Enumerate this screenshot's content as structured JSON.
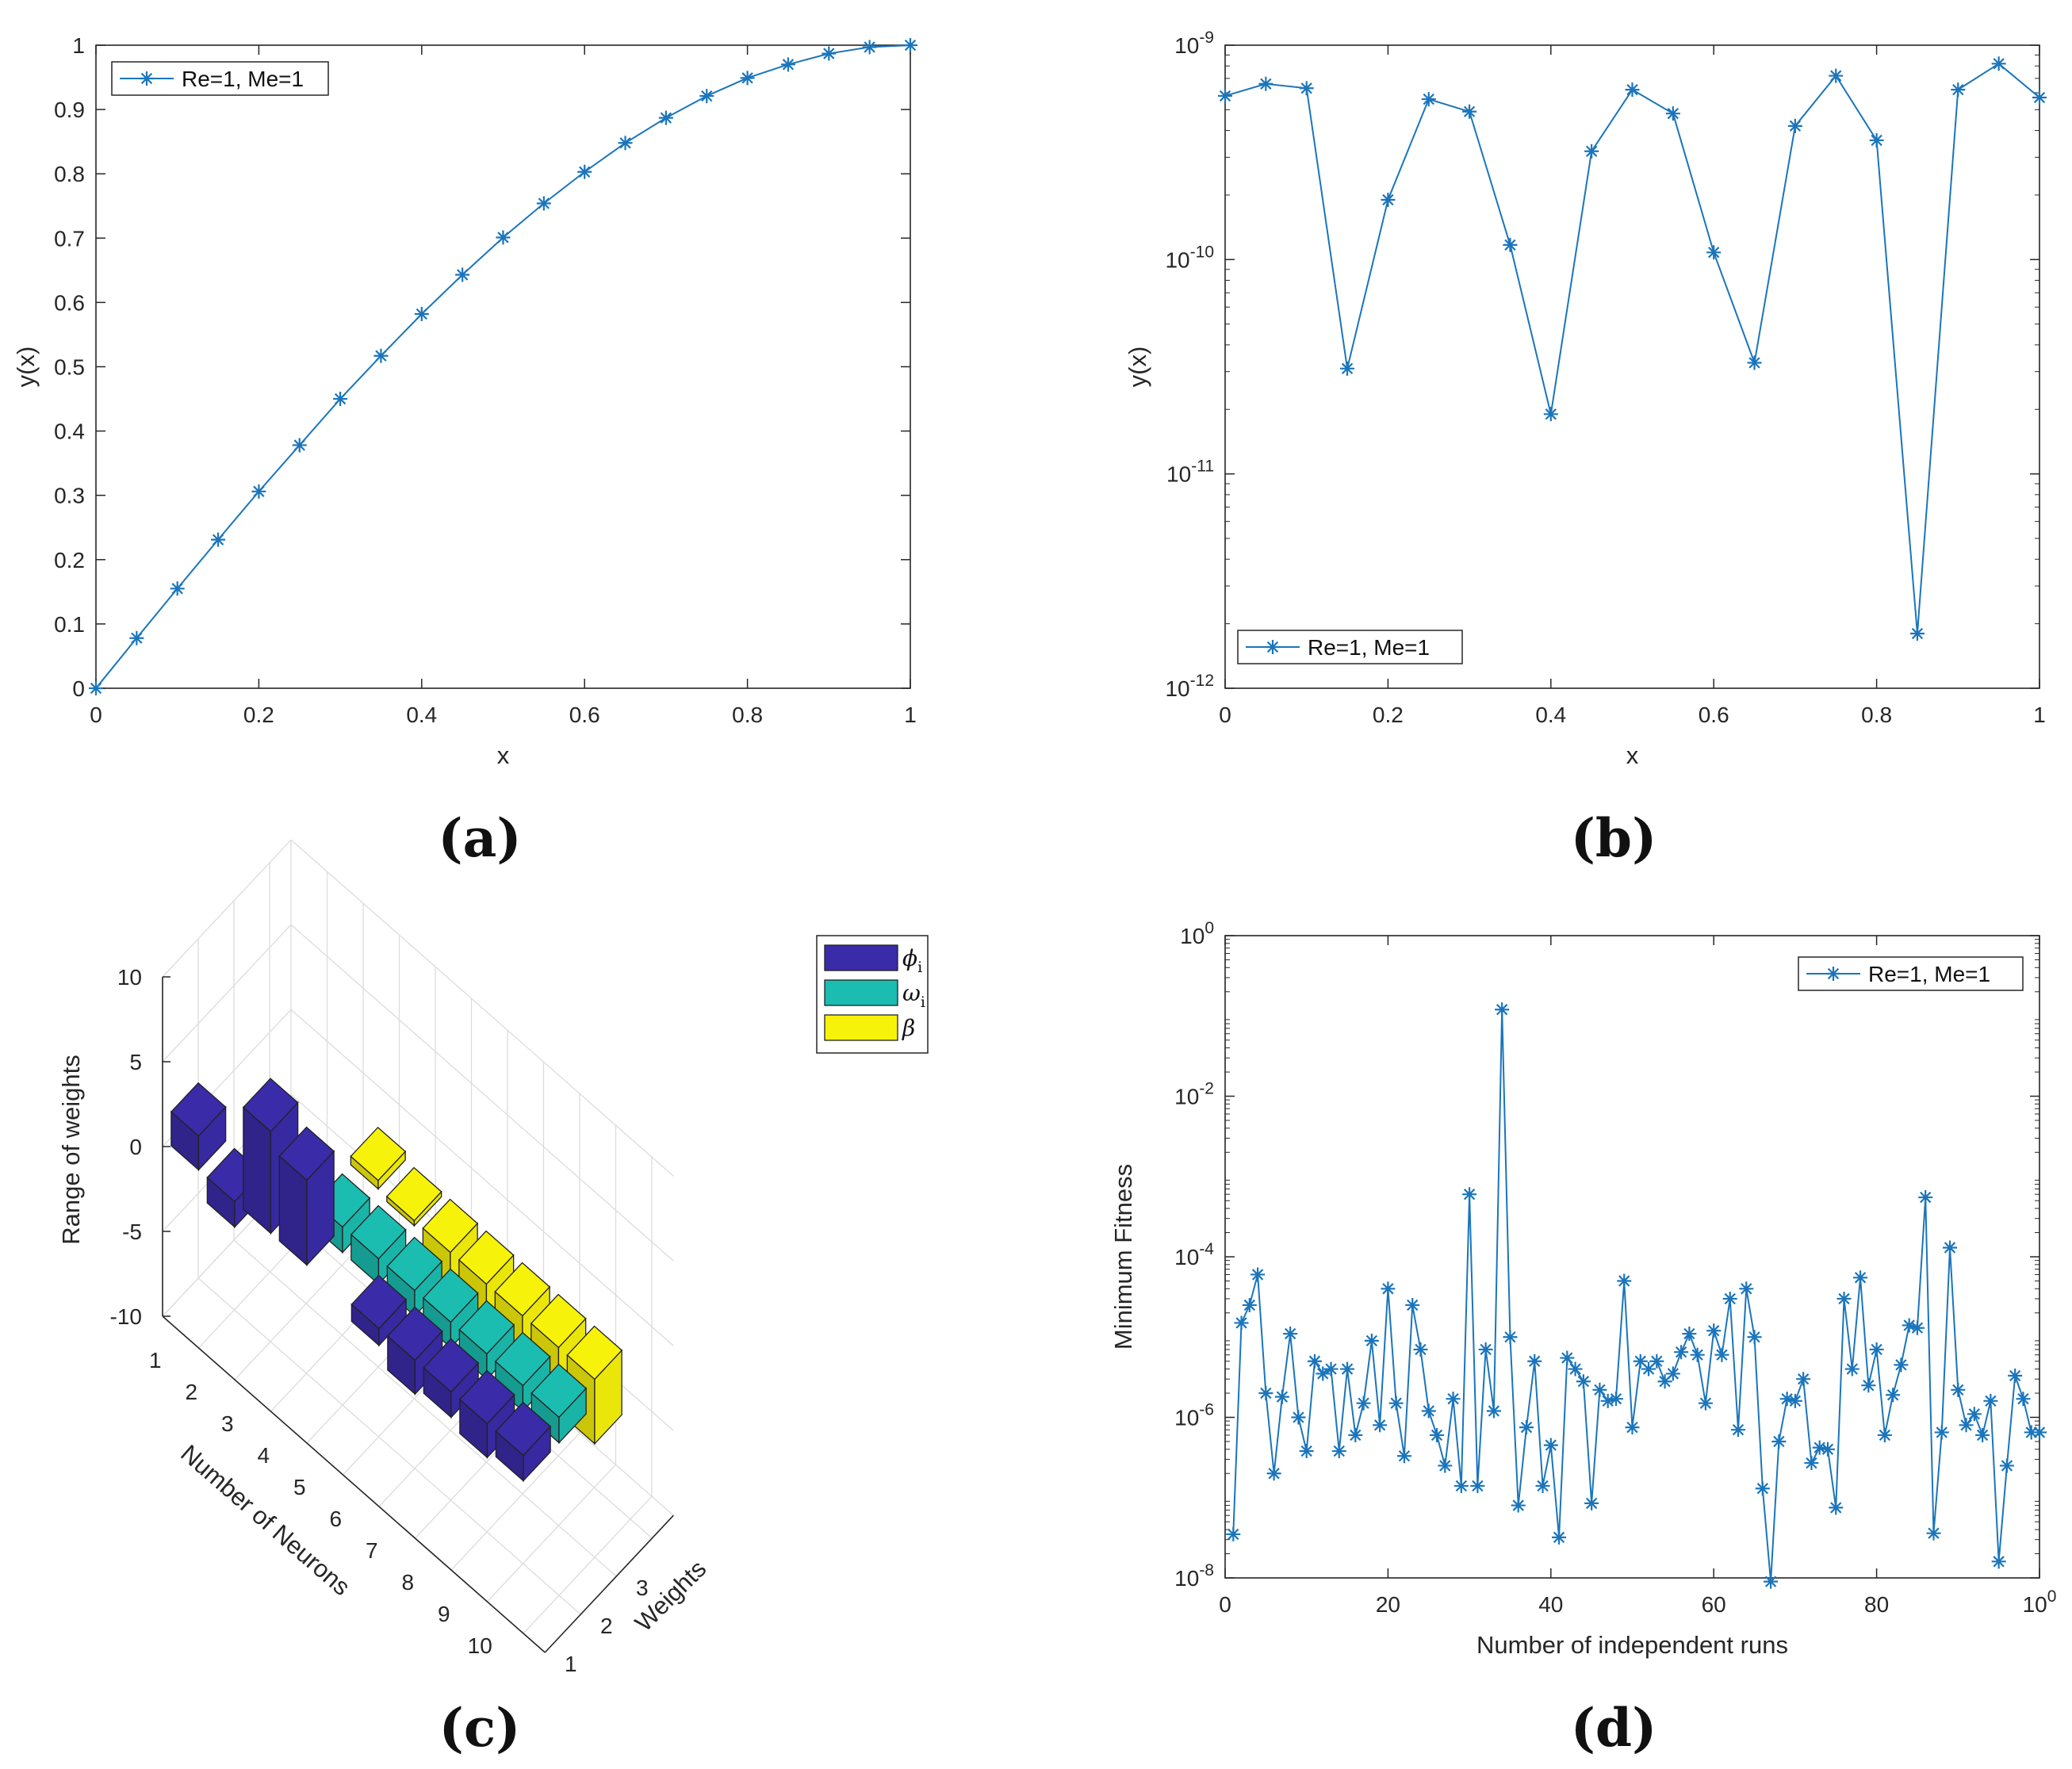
{
  "colors": {
    "series": "#1a75bc",
    "phi": "#3a2ba8",
    "omega": "#1bbdb0",
    "beta": "#f7f209",
    "axis": "#262626"
  },
  "panels": {
    "a": "(a)",
    "b": "(b)",
    "c": "(c)",
    "d": "(d)"
  },
  "chart_data": [
    {
      "type": "line",
      "xlabel": "x",
      "ylabel": "y(x)",
      "xlim": [
        0,
        1
      ],
      "ylim": [
        0,
        1
      ],
      "xticks": [
        "0",
        "0.2",
        "0.4",
        "0.6",
        "0.8",
        "1"
      ],
      "yticks": [
        "0",
        "0.1",
        "0.2",
        "0.3",
        "0.4",
        "0.5",
        "0.6",
        "0.7",
        "0.8",
        "0.9",
        "1"
      ],
      "legend": "top-left",
      "series": [
        {
          "name": "Re=1, Me=1",
          "x": [
            0,
            0.05,
            0.1,
            0.15,
            0.2,
            0.25,
            0.3,
            0.35,
            0.4,
            0.45,
            0.5,
            0.55,
            0.6,
            0.65,
            0.7,
            0.75,
            0.8,
            0.85,
            0.9,
            0.95,
            1
          ],
          "y": [
            0,
            0.078,
            0.155,
            0.231,
            0.306,
            0.378,
            0.45,
            0.517,
            0.582,
            0.643,
            0.701,
            0.754,
            0.803,
            0.848,
            0.887,
            0.921,
            0.949,
            0.97,
            0.987,
            0.997,
            1
          ]
        }
      ]
    },
    {
      "type": "line",
      "xlabel": "x",
      "ylabel": "y(x)",
      "xlim": [
        0,
        1
      ],
      "ylim": [
        1e-12,
        1e-09
      ],
      "yscale": "log",
      "xticks": [
        "0",
        "0.2",
        "0.4",
        "0.6",
        "0.8",
        "1"
      ],
      "yticks": [
        "10-12",
        "10-11",
        "10-10",
        "10-9"
      ],
      "legend": "bottom-left",
      "series": [
        {
          "name": "Re=1, Me=1",
          "x": [
            0,
            0.05,
            0.1,
            0.15,
            0.2,
            0.25,
            0.3,
            0.35,
            0.4,
            0.45,
            0.5,
            0.55,
            0.6,
            0.65,
            0.7,
            0.75,
            0.8,
            0.85,
            0.9,
            0.95,
            1
          ],
          "y": [
            5.8e-10,
            6.6e-10,
            6.3e-10,
            3.1e-11,
            1.9e-10,
            5.6e-10,
            4.9e-10,
            1.17e-10,
            1.9e-11,
            3.2e-10,
            6.2e-10,
            4.8e-10,
            1.08e-10,
            3.3e-11,
            4.2e-10,
            7.2e-10,
            3.6e-10,
            1.8e-12,
            6.2e-10,
            8.2e-10,
            5.7e-10
          ]
        }
      ]
    },
    {
      "type": "bar3d",
      "xlabel": "Number of Neurons",
      "ylabel": "Weights",
      "zlabel": "Range of weights",
      "xticks": [
        "1",
        "2",
        "3",
        "4",
        "5",
        "6",
        "7",
        "8",
        "9",
        "10"
      ],
      "yticks": [
        "1",
        "2",
        "3"
      ],
      "zticks": [
        "-10",
        "-5",
        "0",
        "5",
        "10"
      ],
      "zlim": [
        -10,
        10
      ],
      "legend": "top-right",
      "series": [
        {
          "name": "ϕ",
          "sub": "i",
          "values": [
            2,
            -1.5,
            6,
            5,
            null,
            -1,
            -2,
            -1.5,
            -2,
            -1.5
          ]
        },
        {
          "name": "ω",
          "sub": "i",
          "values": [
            null,
            null,
            null,
            -1.5,
            -1.5,
            -1.5,
            -1.5,
            -1.5,
            -1.5,
            -1.5
          ]
        },
        {
          "name": "β",
          "sub": "",
          "values": [
            null,
            null,
            null,
            0.5,
            -0.3,
            -3.5,
            -3.3,
            -3.5,
            -4,
            -3.8
          ]
        }
      ]
    },
    {
      "type": "line",
      "xlabel": "Number of independent runs",
      "ylabel": "Minimum Fitness",
      "xlim": [
        0,
        100
      ],
      "ylim": [
        1e-08,
        1
      ],
      "yscale": "log",
      "xticks": [
        "0",
        "20",
        "40",
        "60",
        "80",
        "100"
      ],
      "yticks": [
        "10-8",
        "10-6",
        "10-4",
        "10-2",
        "100"
      ],
      "legend": "top-right",
      "series": [
        {
          "name": "Re=1, Me=1",
          "x": [
            1,
            2,
            3,
            4,
            5,
            6,
            7,
            8,
            9,
            10,
            11,
            12,
            13,
            14,
            15,
            16,
            17,
            18,
            19,
            20,
            21,
            22,
            23,
            24,
            25,
            26,
            27,
            28,
            29,
            30,
            31,
            32,
            33,
            34,
            35,
            36,
            37,
            38,
            39,
            40,
            41,
            42,
            43,
            44,
            45,
            46,
            47,
            48,
            49,
            50,
            51,
            52,
            53,
            54,
            55,
            56,
            57,
            58,
            59,
            60,
            61,
            62,
            63,
            64,
            65,
            66,
            67,
            68,
            69,
            70,
            71,
            72,
            73,
            74,
            75,
            76,
            77,
            78,
            79,
            80,
            81,
            82,
            83,
            84,
            85,
            86,
            87,
            88,
            89,
            90,
            91,
            92,
            93,
            94,
            95,
            96,
            97,
            98,
            99,
            100
          ],
          "y": [
            3.5e-08,
            1.5e-05,
            2.5e-05,
            6e-05,
            2e-06,
            2e-07,
            1.8e-06,
            1.1e-05,
            1e-06,
            3.8e-07,
            5e-06,
            3.5e-06,
            4e-06,
            3.8e-07,
            4e-06,
            6e-07,
            1.5e-06,
            9e-06,
            8e-07,
            4e-05,
            1.5e-06,
            3.3e-07,
            2.5e-05,
            7e-06,
            1.2e-06,
            6e-07,
            2.5e-07,
            1.7e-06,
            1.4e-07,
            0.0006,
            1.4e-07,
            7e-06,
            1.2e-06,
            0.12,
            1e-05,
            8e-08,
            7.5e-07,
            5e-06,
            1.4e-07,
            4.5e-07,
            3.2e-08,
            5.5e-06,
            4e-06,
            2.8e-06,
            8.5e-08,
            2.2e-06,
            1.6e-06,
            1.7e-06,
            5e-05,
            7.5e-07,
            5e-06,
            4e-06,
            5e-06,
            2.8e-06,
            3.5e-06,
            6.5e-06,
            1.1e-05,
            6e-06,
            1.5e-06,
            1.2e-05,
            6e-06,
            3e-05,
            7e-07,
            4e-05,
            1e-05,
            1.3e-07,
            9e-09,
            5e-07,
            1.7e-06,
            1.6e-06,
            3e-06,
            2.7e-07,
            4.2e-07,
            4e-07,
            7.5e-08,
            3e-05,
            4e-06,
            5.5e-05,
            2.5e-06,
            7e-06,
            6e-07,
            1.9e-06,
            4.5e-06,
            1.4e-05,
            1.3e-05,
            0.00055,
            3.6e-08,
            6.5e-07,
            0.00013,
            2.2e-06,
            8e-07,
            1.1e-06,
            6e-07,
            1.6e-06,
            1.6e-08,
            2.5e-07,
            3.3e-06,
            1.7e-06,
            6.5e-07,
            6.5e-07
          ]
        }
      ]
    }
  ]
}
